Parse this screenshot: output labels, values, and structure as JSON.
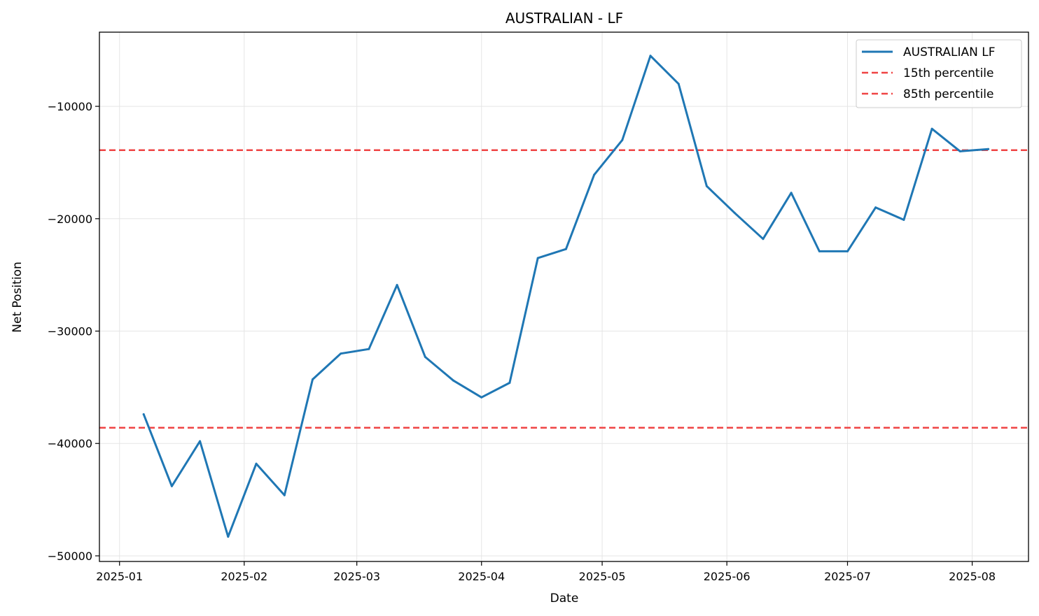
{
  "chart_data": {
    "type": "line",
    "title": "AUSTRALIAN - LF",
    "xlabel": "Date",
    "ylabel": "Net Position",
    "x_ticks": [
      "2025-01",
      "2025-02",
      "2025-03",
      "2025-04",
      "2025-05",
      "2025-06",
      "2025-07",
      "2025-08"
    ],
    "y_ticks": [
      -50000,
      -40000,
      -30000,
      -20000,
      -10000
    ],
    "y_tick_labels": [
      "−50000",
      "−40000",
      "−30000",
      "−20000",
      "−10000"
    ],
    "xlim": [
      "2024-12-27",
      "2025-08-15"
    ],
    "ylim": [
      -50500,
      -3400
    ],
    "grid": true,
    "legend_position": "top-right",
    "series": [
      {
        "name": "AUSTRALIAN LF",
        "color": "#1f77b4",
        "style": "solid",
        "x": [
          "2025-01-07",
          "2025-01-14",
          "2025-01-21",
          "2025-01-28",
          "2025-02-04",
          "2025-02-11",
          "2025-02-18",
          "2025-02-25",
          "2025-03-04",
          "2025-03-11",
          "2025-03-18",
          "2025-03-25",
          "2025-04-01",
          "2025-04-08",
          "2025-04-15",
          "2025-04-22",
          "2025-04-29",
          "2025-05-06",
          "2025-05-13",
          "2025-05-20",
          "2025-05-27",
          "2025-06-03",
          "2025-06-10",
          "2025-06-17",
          "2025-06-24",
          "2025-07-01",
          "2025-07-08",
          "2025-07-15",
          "2025-07-22",
          "2025-07-29",
          "2025-08-05"
        ],
        "y": [
          -37400,
          -43800,
          -39800,
          -48300,
          -41800,
          -44600,
          -34300,
          -32000,
          -31600,
          -25900,
          -32300,
          -34400,
          -35900,
          -34600,
          -23500,
          -22700,
          -16100,
          -13000,
          -5500,
          -8000,
          -17100,
          -19500,
          -21800,
          -17700,
          -22900,
          -22900,
          -19000,
          -20100,
          -12000,
          -14000,
          -13800
        ]
      },
      {
        "name": "15th percentile",
        "color": "#ef4444",
        "style": "dashed",
        "value": -38600
      },
      {
        "name": "85th percentile",
        "color": "#ef4444",
        "style": "dashed",
        "value": -13900
      }
    ]
  }
}
